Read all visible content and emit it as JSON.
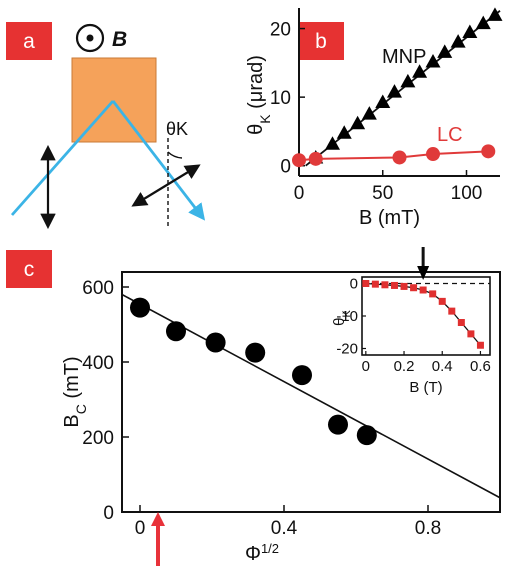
{
  "panel_labels": [
    "a",
    "b",
    "c"
  ],
  "panel_a": {
    "field_symbol": "B",
    "angle_label": "θK",
    "colors": {
      "sample": "#f5a25a",
      "beam": "#3bb4e6",
      "tag": "#e63232"
    }
  },
  "chart_data": [
    {
      "type": "scatter",
      "panel": "b",
      "xlabel": "B (mT)",
      "ylabel": "θK (μrad)",
      "xlim": [
        0,
        120
      ],
      "ylim": [
        -1.5,
        23
      ],
      "xticks": [
        0,
        50,
        100
      ],
      "yticks": [
        0,
        10,
        20
      ],
      "grid": false,
      "series": [
        {
          "name": "MNP",
          "marker": "triangle",
          "color": "#000000",
          "x": [
            10,
            20,
            27,
            35,
            42,
            50,
            57,
            65,
            72,
            80,
            87,
            95,
            102,
            110,
            117
          ],
          "y": [
            1.2,
            3.2,
            4.8,
            6.2,
            7.6,
            9.3,
            10.8,
            12.3,
            13.7,
            15.2,
            16.6,
            18.1,
            19.5,
            20.8,
            22.0
          ]
        },
        {
          "name": "LC",
          "marker": "circle",
          "color": "#e03a3a",
          "x": [
            0,
            10,
            60,
            80,
            113
          ],
          "y": [
            0.8,
            1.0,
            1.2,
            1.7,
            2.1
          ]
        }
      ]
    },
    {
      "type": "scatter",
      "panel": "c",
      "xlabel": "Φ1/2",
      "ylabel": "BC (mT)",
      "xlim": [
        -0.05,
        1.0
      ],
      "ylim": [
        0,
        640
      ],
      "xticks": [
        0,
        0.4,
        0.8
      ],
      "yticks": [
        0,
        200,
        400,
        600
      ],
      "grid": false,
      "series": [
        {
          "marker": "circle",
          "color": "#000000",
          "x": [
            0.0,
            0.1,
            0.21,
            0.32,
            0.45,
            0.55,
            0.63
          ],
          "y": [
            545,
            482,
            452,
            425,
            365,
            233,
            205
          ]
        }
      ],
      "fit_line": {
        "x": [
          -0.05,
          1.0
        ],
        "y": [
          580,
          38
        ]
      },
      "arrow": {
        "x": 0.05,
        "color": "#e8323a"
      }
    },
    {
      "type": "line",
      "panel": "c-inset",
      "xlabel": "B (T)",
      "ylabel": "θK",
      "xlim": [
        -0.02,
        0.65
      ],
      "ylim": [
        -22,
        2
      ],
      "xticks": [
        0,
        0.2,
        0.4,
        0.6
      ],
      "yticks": [
        0,
        -10,
        -20
      ],
      "grid": false,
      "series": [
        {
          "marker": "square",
          "color": "#e03030",
          "x": [
            0.0,
            0.05,
            0.1,
            0.15,
            0.2,
            0.25,
            0.3,
            0.35,
            0.4,
            0.45,
            0.5,
            0.55,
            0.6
          ],
          "y": [
            0,
            -0.2,
            -0.4,
            -0.6,
            -0.9,
            -1.3,
            -2.0,
            -3.2,
            -5.5,
            -8.5,
            -12.0,
            -15.5,
            -19.0
          ]
        }
      ],
      "reference_line_y": 0,
      "arrow": {
        "x": 0.3,
        "color": "#000000"
      }
    }
  ]
}
